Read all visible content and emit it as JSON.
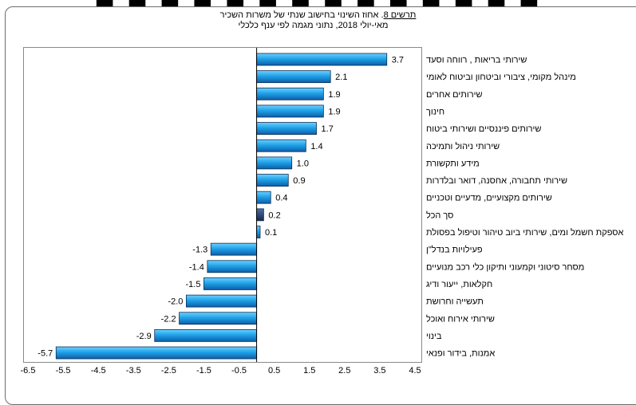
{
  "top_fragment": "■ ■ ■ ■ ■ ■ ■ ■ ■ ■ ■ ■ ■ ■",
  "figure": {
    "label": "תרשים 8",
    "title": ". אחוז השינוי בחישוב שנתי של משרות השכיר",
    "subtitle": "מאי-יולי  2018, נתוני מגמה לפי ענף כלכלי"
  },
  "colors": {
    "bar_fill": "#1fa2e8",
    "bar_fill_dark": "#0d5ea8",
    "total_fill": "#1f3c6e",
    "bar_border": "#0a2d55",
    "zero_line": "#000000",
    "frame": "#6d6d6d"
  },
  "chart_data": {
    "type": "bar",
    "orientation": "horizontal",
    "categories": [
      "שירותי בריאות , רווחה וסעד",
      "מינהל מקומי, ציבורי וביטחון וביטוח לאומי",
      "שירותים אחרים",
      "חינוך",
      "שירותים פיננסיים ושירותי ביטוח",
      "שירותי ניהול ותמיכה",
      "מידע ותקשורת",
      "שירותי תחבורה, אחסנה, דואר ובלדרות",
      "שירותים מקצועיים, מדעיים וטכניים",
      "סך הכל",
      "אספקת חשמל ומים, שירותי ביוב טיהור וטיפול בפסולת",
      "פעילויות בנדל\"ן",
      "מסחר סיטוני וקמעוני ותיקון כלי רכב מנועיים",
      "חקלאות, ייעור ודיג",
      "תעשייה וחרושת",
      "שירותי אירוח ואוכל",
      "בינוי",
      "אמנות, בידור ופנאי"
    ],
    "values": [
      3.7,
      2.1,
      1.9,
      1.9,
      1.7,
      1.4,
      1.0,
      0.9,
      0.4,
      0.2,
      0.1,
      -1.3,
      -1.4,
      -1.5,
      -2.0,
      -2.2,
      -2.9,
      -5.7
    ],
    "value_labels": [
      "3.7",
      "2.1",
      "1.9",
      "1.9",
      "1.7",
      "1.4",
      "1.0",
      "0.9",
      "0.4",
      "0.2",
      "0.1",
      "-1.3",
      "-1.4",
      "-1.5",
      "-2.0",
      "-2.2",
      "-2.9",
      "-5.7"
    ],
    "highlight_category": "סך הכל",
    "xlim": [
      -6.5,
      4.5
    ],
    "x_ticks": [
      "-6.5",
      "-5.5",
      "-4.5",
      "-3.5",
      "-2.5",
      "-1.5",
      "-0.5",
      "0.5",
      "1.5",
      "2.5",
      "3.5",
      "4.5"
    ],
    "grid": false,
    "legend": "none"
  }
}
